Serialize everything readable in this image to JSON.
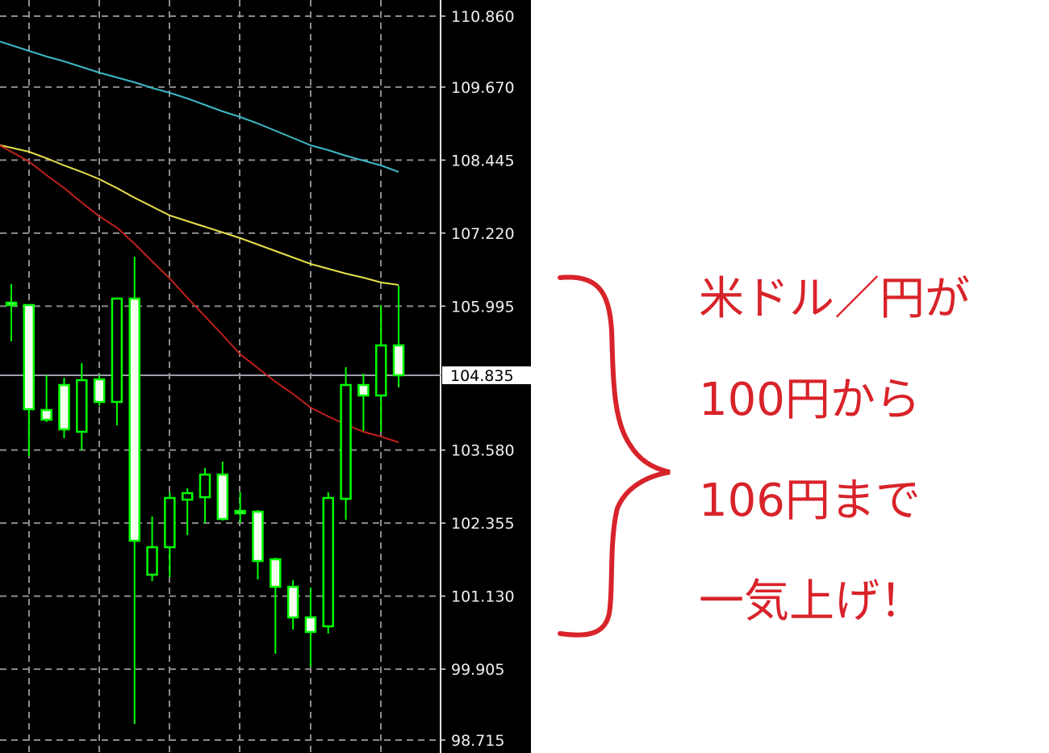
{
  "chart_data": {
    "type": "candlestick",
    "ylim": [
      98.715,
      110.86
    ],
    "grid": true,
    "background": "#000000",
    "y_ticks": [
      "110.860",
      "109.670",
      "108.445",
      "107.220",
      "105.995",
      "103.580",
      "102.355",
      "101.130",
      "99.905",
      "98.715"
    ],
    "y_tick_values": [
      110.86,
      109.67,
      108.445,
      107.22,
      105.995,
      103.58,
      102.355,
      101.13,
      99.905,
      98.715
    ],
    "current_price": {
      "label": "104.835",
      "value": 104.835
    },
    "candle_color": "#00ff00",
    "candles": [
      {
        "o": 106.053,
        "h": 106.365,
        "l": 105.404,
        "c": 106.013
      },
      {
        "o": 106.013,
        "h": 106.013,
        "l": 103.481,
        "c": 104.266
      },
      {
        "o": 104.252,
        "h": 104.835,
        "l": 104.049,
        "c": 104.09
      },
      {
        "o": 104.672,
        "h": 104.794,
        "l": 103.779,
        "c": 103.928
      },
      {
        "o": 103.887,
        "h": 105.038,
        "l": 103.575,
        "c": 104.753
      },
      {
        "o": 104.767,
        "h": 104.835,
        "l": 104.32,
        "c": 104.388
      },
      {
        "o": 104.388,
        "h": 106.121,
        "l": 103.995,
        "c": 106.121
      },
      {
        "o": 106.121,
        "h": 106.825,
        "l": 98.985,
        "c": 102.059
      },
      {
        "o": 101.49,
        "h": 102.465,
        "l": 101.382,
        "c": 101.951
      },
      {
        "o": 101.951,
        "h": 102.871,
        "l": 101.45,
        "c": 102.777
      },
      {
        "o": 102.749,
        "h": 102.939,
        "l": 102.154,
        "c": 102.858
      },
      {
        "o": 102.79,
        "h": 103.278,
        "l": 102.357,
        "c": 103.169
      },
      {
        "o": 103.169,
        "h": 103.386,
        "l": 102.397,
        "c": 102.424
      },
      {
        "o": 102.56,
        "h": 102.871,
        "l": 102.357,
        "c": 102.533
      },
      {
        "o": 102.546,
        "h": 102.574,
        "l": 101.409,
        "c": 101.72
      },
      {
        "o": 101.748,
        "h": 101.775,
        "l": 100.163,
        "c": 101.287
      },
      {
        "o": 101.287,
        "h": 101.396,
        "l": 100.57,
        "c": 100.773
      },
      {
        "o": 100.773,
        "h": 101.274,
        "l": 99.947,
        "c": 100.529
      },
      {
        "o": 100.624,
        "h": 102.871,
        "l": 100.502,
        "c": 102.777
      },
      {
        "o": 102.763,
        "h": 104.97,
        "l": 102.411,
        "c": 104.672
      },
      {
        "o": 104.672,
        "h": 104.862,
        "l": 103.9,
        "c": 104.496
      },
      {
        "o": 104.496,
        "h": 106.013,
        "l": 103.887,
        "c": 105.336
      },
      {
        "o": 105.336,
        "h": 106.338,
        "l": 104.632,
        "c": 104.835
      }
    ],
    "moving_averages": [
      {
        "color": "#3bb8c4",
        "values": [
          110.373,
          110.278,
          110.183,
          110.102,
          110.007,
          109.912,
          109.831,
          109.75,
          109.655,
          109.574,
          109.479,
          109.371,
          109.262,
          109.168,
          109.059,
          108.937,
          108.815,
          108.693,
          108.612,
          108.518,
          108.436,
          108.355,
          108.247
        ]
      },
      {
        "color": "#e6e04a",
        "values": [
          108.653,
          108.585,
          108.477,
          108.355,
          108.247,
          108.125,
          107.976,
          107.814,
          107.665,
          107.516,
          107.421,
          107.326,
          107.231,
          107.136,
          107.028,
          106.92,
          106.811,
          106.703,
          106.622,
          106.541,
          106.473,
          106.392,
          106.351
        ]
      },
      {
        "color": "#c0201a",
        "values": [
          108.585,
          108.423,
          108.193,
          107.976,
          107.732,
          107.502,
          107.313,
          107.042,
          106.744,
          106.46,
          106.135,
          105.824,
          105.512,
          105.187,
          104.957,
          104.727,
          104.524,
          104.293,
          104.144,
          104.009,
          103.887,
          103.806,
          103.711
        ]
      }
    ]
  },
  "annotation": {
    "color": "#d8232a",
    "lines": [
      "米ドル／円が",
      "100円から",
      "106円まで",
      "一気上げ！"
    ]
  }
}
